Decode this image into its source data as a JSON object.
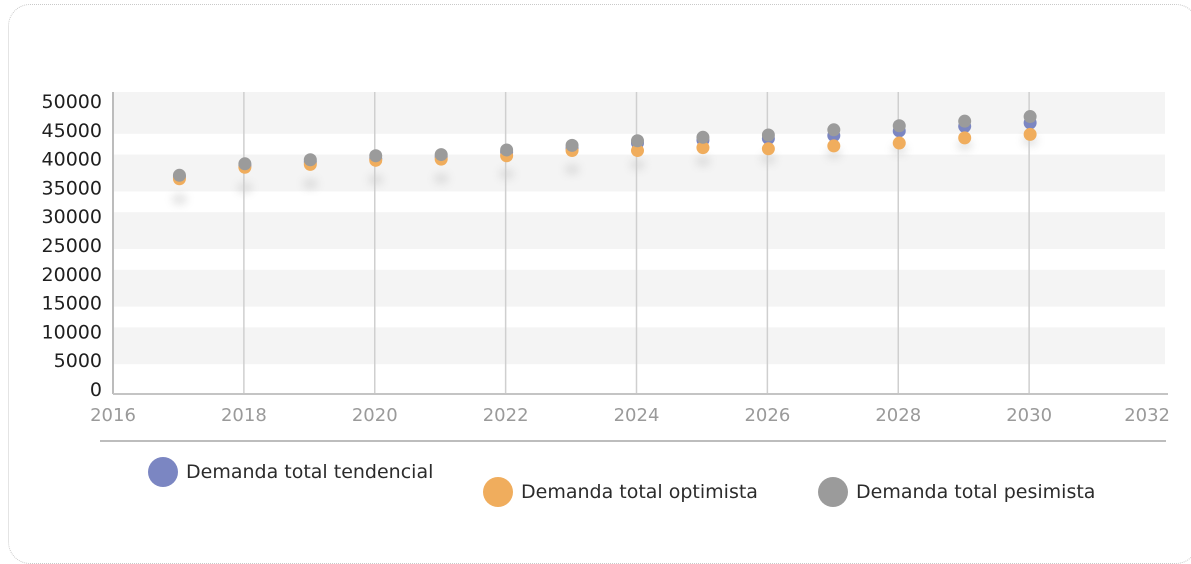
{
  "chart_data": {
    "type": "scatter",
    "title": "",
    "xlabel": "",
    "ylabel": "",
    "xlim": [
      2016,
      2032
    ],
    "ylim": [
      0,
      50000
    ],
    "x_ticks": [
      "2016",
      "2018",
      "2020",
      "2022",
      "2024",
      "2026",
      "2028",
      "2030",
      "2032"
    ],
    "y_ticks": [
      "0",
      "5000",
      "10000",
      "15000",
      "20000",
      "25000",
      "30000",
      "35000",
      "40000",
      "45000",
      "50000"
    ],
    "grid": {
      "vertical": true,
      "horizontal_bands": true
    },
    "legend_placement": "bottom",
    "x": [
      2017,
      2018,
      2019,
      2020,
      2021,
      2022,
      2023,
      2024,
      2025,
      2026,
      2027,
      2028,
      2029,
      2030
    ],
    "series": [
      {
        "name": "Demanda total tendencial",
        "color": "#7b86c2",
        "values": [
          36800,
          38800,
          39400,
          40000,
          40300,
          41100,
          41800,
          42700,
          43200,
          43500,
          44000,
          44800,
          45600,
          46200
        ]
      },
      {
        "name": "Demanda total optimista",
        "color": "#f0ad5d",
        "values": [
          36500,
          38500,
          39000,
          39700,
          39900,
          40500,
          41400,
          41400,
          41900,
          41700,
          42200,
          42700,
          43600,
          44200
        ]
      },
      {
        "name": "Demanda total pesimista",
        "color": "#9b9b9b",
        "values": [
          37100,
          39100,
          39800,
          40500,
          40700,
          41500,
          42300,
          43100,
          43700,
          44100,
          45000,
          45700,
          46500,
          47300
        ]
      }
    ]
  }
}
